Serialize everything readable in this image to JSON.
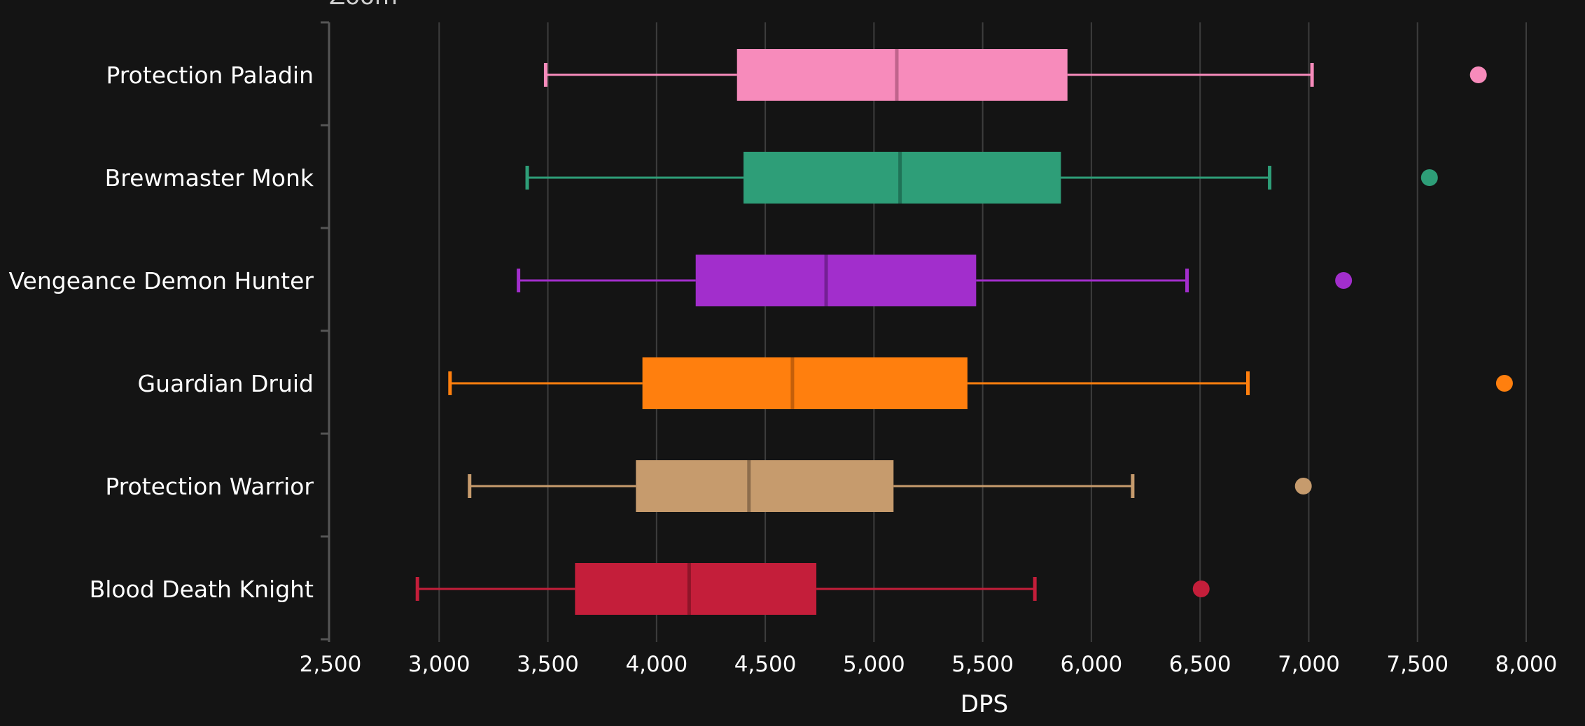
{
  "chart_data": {
    "type": "boxplot",
    "title": "Zoom",
    "xlabel": "DPS",
    "ylabel": "",
    "xlim": [
      2500,
      8000
    ],
    "xticks": [
      2500,
      3000,
      3500,
      4000,
      4500,
      5000,
      5500,
      6000,
      6500,
      7000,
      7500,
      8000
    ],
    "xtick_labels": [
      "2,500",
      "3,000",
      "3,500",
      "4,000",
      "4,500",
      "5,000",
      "5,500",
      "6,000",
      "6,500",
      "7,000",
      "7,500",
      "8,000"
    ],
    "grid": "vertical",
    "categories": [
      "Protection Paladin",
      "Brewmaster Monk",
      "Vengeance Demon Hunter",
      "Guardian Druid",
      "Protection Warrior",
      "Blood Death Knight"
    ],
    "series": [
      {
        "name": "Protection Paladin",
        "color": "#f78bbb",
        "median_color": "#c0648c",
        "whisker_low": 3490,
        "q1": 4370,
        "median": 5105,
        "q3": 5890,
        "whisker_high": 7015,
        "outliers": [
          7780
        ]
      },
      {
        "name": "Brewmaster Monk",
        "color": "#2e9e78",
        "median_color": "#1f7357",
        "whisker_low": 3405,
        "q1": 4400,
        "median": 5120,
        "q3": 5860,
        "whisker_high": 6820,
        "outliers": [
          7555
        ]
      },
      {
        "name": "Vengeance Demon Hunter",
        "color": "#a22ecc",
        "median_color": "#741f94",
        "whisker_low": 3365,
        "q1": 4180,
        "median": 4780,
        "q3": 5470,
        "whisker_high": 6440,
        "outliers": [
          7160
        ]
      },
      {
        "name": "Guardian Druid",
        "color": "#ff7f0e",
        "median_color": "#c45f0a",
        "whisker_low": 3050,
        "q1": 3935,
        "median": 4625,
        "q3": 5430,
        "whisker_high": 6720,
        "outliers": [
          7900
        ]
      },
      {
        "name": "Protection Warrior",
        "color": "#c69b6d",
        "median_color": "#8d6d4c",
        "whisker_low": 3140,
        "q1": 3905,
        "median": 4425,
        "q3": 5090,
        "whisker_high": 6190,
        "outliers": [
          6975
        ]
      },
      {
        "name": "Blood Death Knight",
        "color": "#c41e3a",
        "median_color": "#8f1529",
        "whisker_low": 2900,
        "q1": 3625,
        "median": 4150,
        "q3": 4735,
        "whisker_high": 5740,
        "outliers": [
          6505
        ]
      }
    ]
  }
}
